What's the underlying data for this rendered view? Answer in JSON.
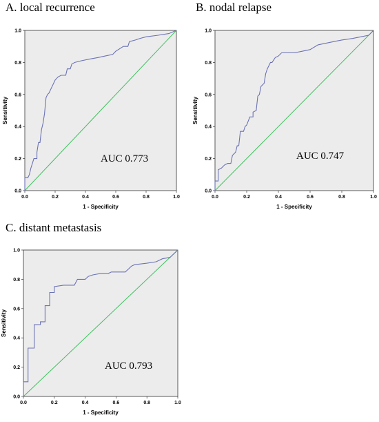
{
  "colors": {
    "roc_line": "#6b72b4",
    "reference_line": "#3fbf5f",
    "plot_background": "#ececec",
    "frame": "#333333"
  },
  "chart_data": [
    {
      "type": "line",
      "panel_title": "A. local recurrence",
      "annotation": "AUC  0.773",
      "xlabel": "1 - Specificity",
      "ylabel": "Sensitivity",
      "xlim": [
        0,
        1
      ],
      "ylim": [
        0,
        1
      ],
      "xticks": [
        "0.0",
        "0.2",
        "0.4",
        "0.6",
        "0.8",
        "1.0"
      ],
      "yticks": [
        "0.0",
        "0.2",
        "0.4",
        "0.6",
        "0.8",
        "1.0"
      ],
      "grid": false,
      "series": [
        {
          "points": [
            [
              0,
              0
            ],
            [
              0,
              0.08
            ],
            [
              0.02,
              0.08
            ],
            [
              0.03,
              0.1
            ],
            [
              0.04,
              0.14
            ],
            [
              0.05,
              0.17
            ],
            [
              0.06,
              0.2
            ],
            [
              0.08,
              0.2
            ],
            [
              0.08,
              0.24
            ],
            [
              0.09,
              0.3
            ],
            [
              0.1,
              0.3
            ],
            [
              0.11,
              0.38
            ],
            [
              0.12,
              0.42
            ],
            [
              0.13,
              0.48
            ],
            [
              0.14,
              0.58
            ],
            [
              0.15,
              0.6
            ],
            [
              0.16,
              0.61
            ],
            [
              0.17,
              0.63
            ],
            [
              0.18,
              0.65
            ],
            [
              0.19,
              0.67
            ],
            [
              0.2,
              0.69
            ],
            [
              0.22,
              0.71
            ],
            [
              0.24,
              0.72
            ],
            [
              0.27,
              0.72
            ],
            [
              0.28,
              0.76
            ],
            [
              0.3,
              0.76
            ],
            [
              0.31,
              0.79
            ],
            [
              0.33,
              0.8
            ],
            [
              0.37,
              0.81
            ],
            [
              0.42,
              0.82
            ],
            [
              0.48,
              0.83
            ],
            [
              0.53,
              0.84
            ],
            [
              0.58,
              0.85
            ],
            [
              0.6,
              0.87
            ],
            [
              0.65,
              0.9
            ],
            [
              0.68,
              0.9
            ],
            [
              0.69,
              0.93
            ],
            [
              0.73,
              0.94
            ],
            [
              0.76,
              0.95
            ],
            [
              0.8,
              0.96
            ],
            [
              0.88,
              0.97
            ],
            [
              0.95,
              0.98
            ],
            [
              1,
              1
            ]
          ]
        }
      ],
      "reference": [
        [
          0,
          0
        ],
        [
          1,
          1
        ]
      ]
    },
    {
      "type": "line",
      "panel_title": "B. nodal relapse",
      "annotation": "AUC  0.747",
      "xlabel": "1 - Specificity",
      "ylabel": "Sensitivity",
      "xlim": [
        0,
        1
      ],
      "ylim": [
        0,
        1
      ],
      "xticks": [
        "0.0",
        "0.2",
        "0.4",
        "0.6",
        "0.8",
        "1.0"
      ],
      "yticks": [
        "0.0",
        "0.2",
        "0.4",
        "0.6",
        "0.8",
        "1.0"
      ],
      "grid": false,
      "series": [
        {
          "points": [
            [
              0,
              0
            ],
            [
              0,
              0.06
            ],
            [
              0.02,
              0.06
            ],
            [
              0.02,
              0.13
            ],
            [
              0.04,
              0.14
            ],
            [
              0.06,
              0.16
            ],
            [
              0.08,
              0.17
            ],
            [
              0.1,
              0.17
            ],
            [
              0.11,
              0.22
            ],
            [
              0.13,
              0.24
            ],
            [
              0.14,
              0.28
            ],
            [
              0.15,
              0.28
            ],
            [
              0.16,
              0.37
            ],
            [
              0.18,
              0.37
            ],
            [
              0.19,
              0.4
            ],
            [
              0.2,
              0.41
            ],
            [
              0.22,
              0.46
            ],
            [
              0.24,
              0.46
            ],
            [
              0.24,
              0.49
            ],
            [
              0.26,
              0.5
            ],
            [
              0.27,
              0.59
            ],
            [
              0.28,
              0.6
            ],
            [
              0.29,
              0.65
            ],
            [
              0.31,
              0.67
            ],
            [
              0.32,
              0.73
            ],
            [
              0.33,
              0.76
            ],
            [
              0.35,
              0.8
            ],
            [
              0.36,
              0.8
            ],
            [
              0.38,
              0.83
            ],
            [
              0.4,
              0.84
            ],
            [
              0.42,
              0.86
            ],
            [
              0.5,
              0.86
            ],
            [
              0.55,
              0.87
            ],
            [
              0.6,
              0.88
            ],
            [
              0.65,
              0.91
            ],
            [
              0.7,
              0.92
            ],
            [
              0.75,
              0.93
            ],
            [
              0.8,
              0.94
            ],
            [
              0.87,
              0.95
            ],
            [
              0.92,
              0.96
            ],
            [
              0.97,
              0.97
            ],
            [
              1,
              1
            ]
          ]
        }
      ],
      "reference": [
        [
          0,
          0
        ],
        [
          1,
          1
        ]
      ]
    },
    {
      "type": "line",
      "panel_title": "C. distant metastasis",
      "annotation": "AUC  0.793",
      "xlabel": "1 - Specificity",
      "ylabel": "Sensitivity",
      "xlim": [
        0,
        1
      ],
      "ylim": [
        0,
        1
      ],
      "xticks": [
        "0.0",
        "0.2",
        "0.4",
        "0.6",
        "0.8",
        "1.0"
      ],
      "yticks": [
        "0.0",
        "0.2",
        "0.4",
        "0.6",
        "0.8",
        "1.0"
      ],
      "grid": false,
      "series": [
        {
          "points": [
            [
              0,
              0
            ],
            [
              0,
              0.1
            ],
            [
              0.03,
              0.1
            ],
            [
              0.03,
              0.33
            ],
            [
              0.07,
              0.33
            ],
            [
              0.07,
              0.49
            ],
            [
              0.11,
              0.49
            ],
            [
              0.11,
              0.51
            ],
            [
              0.14,
              0.51
            ],
            [
              0.14,
              0.62
            ],
            [
              0.17,
              0.62
            ],
            [
              0.17,
              0.71
            ],
            [
              0.2,
              0.71
            ],
            [
              0.2,
              0.75
            ],
            [
              0.26,
              0.76
            ],
            [
              0.33,
              0.76
            ],
            [
              0.35,
              0.8
            ],
            [
              0.4,
              0.8
            ],
            [
              0.42,
              0.82
            ],
            [
              0.45,
              0.83
            ],
            [
              0.5,
              0.84
            ],
            [
              0.55,
              0.84
            ],
            [
              0.57,
              0.85
            ],
            [
              0.66,
              0.85
            ],
            [
              0.68,
              0.87
            ],
            [
              0.7,
              0.89
            ],
            [
              0.72,
              0.9
            ],
            [
              0.8,
              0.91
            ],
            [
              0.86,
              0.92
            ],
            [
              0.9,
              0.94
            ],
            [
              0.95,
              0.95
            ],
            [
              0.97,
              0.97
            ],
            [
              1,
              1
            ]
          ]
        }
      ],
      "reference": [
        [
          0,
          0
        ],
        [
          1,
          1
        ]
      ]
    }
  ]
}
